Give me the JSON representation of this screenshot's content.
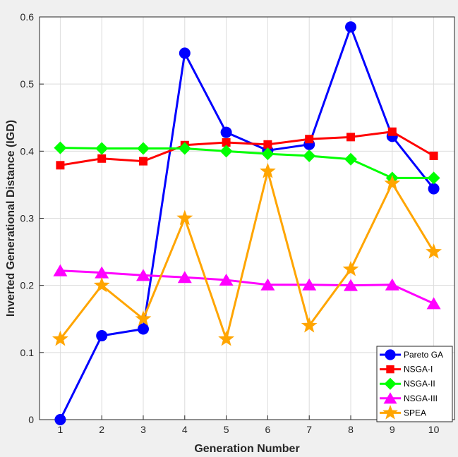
{
  "chart_data": {
    "type": "line",
    "title": "",
    "xlabel": "Generation Number",
    "ylabel": "Inverted Generational Distance (IGD)",
    "x": [
      1,
      2,
      3,
      4,
      5,
      6,
      7,
      8,
      9,
      10
    ],
    "xlim": [
      0.5,
      10.5
    ],
    "ylim": [
      0,
      0.6
    ],
    "xticks": [
      "1",
      "2",
      "3",
      "4",
      "5",
      "6",
      "7",
      "8",
      "9",
      "10"
    ],
    "yticks": [
      {
        "value": 0,
        "label": "0"
      },
      {
        "value": 0.1,
        "label": "0.1"
      },
      {
        "value": 0.2,
        "label": "0.2"
      },
      {
        "value": 0.3,
        "label": "0.3"
      },
      {
        "value": 0.4,
        "label": "0.4"
      },
      {
        "value": 0.5,
        "label": "0.5"
      },
      {
        "value": 0.6,
        "label": "0.6"
      }
    ],
    "grid": true,
    "legend_position": "bottom-right",
    "series": [
      {
        "name": "Pareto GA",
        "color": "#0000ff",
        "marker": "circle",
        "values": [
          0.0,
          0.125,
          0.135,
          0.546,
          0.428,
          0.401,
          0.41,
          0.585,
          0.422,
          0.344
        ]
      },
      {
        "name": "NSGA-I",
        "color": "#ff0000",
        "marker": "square",
        "values": [
          0.379,
          0.389,
          0.385,
          0.409,
          0.413,
          0.41,
          0.418,
          0.421,
          0.429,
          0.393
        ]
      },
      {
        "name": "NSGA-II",
        "color": "#00ff00",
        "marker": "diamond",
        "values": [
          0.405,
          0.404,
          0.404,
          0.404,
          0.4,
          0.396,
          0.393,
          0.388,
          0.36,
          0.36
        ]
      },
      {
        "name": "NSGA-III",
        "color": "#ff00ff",
        "marker": "triangle",
        "values": [
          0.222,
          0.219,
          0.215,
          0.212,
          0.208,
          0.201,
          0.201,
          0.2,
          0.201,
          0.173
        ]
      },
      {
        "name": "SPEA",
        "color": "#ffa500",
        "marker": "star",
        "values": [
          0.12,
          0.2,
          0.15,
          0.3,
          0.12,
          0.37,
          0.14,
          0.224,
          0.352,
          0.25
        ]
      }
    ]
  }
}
